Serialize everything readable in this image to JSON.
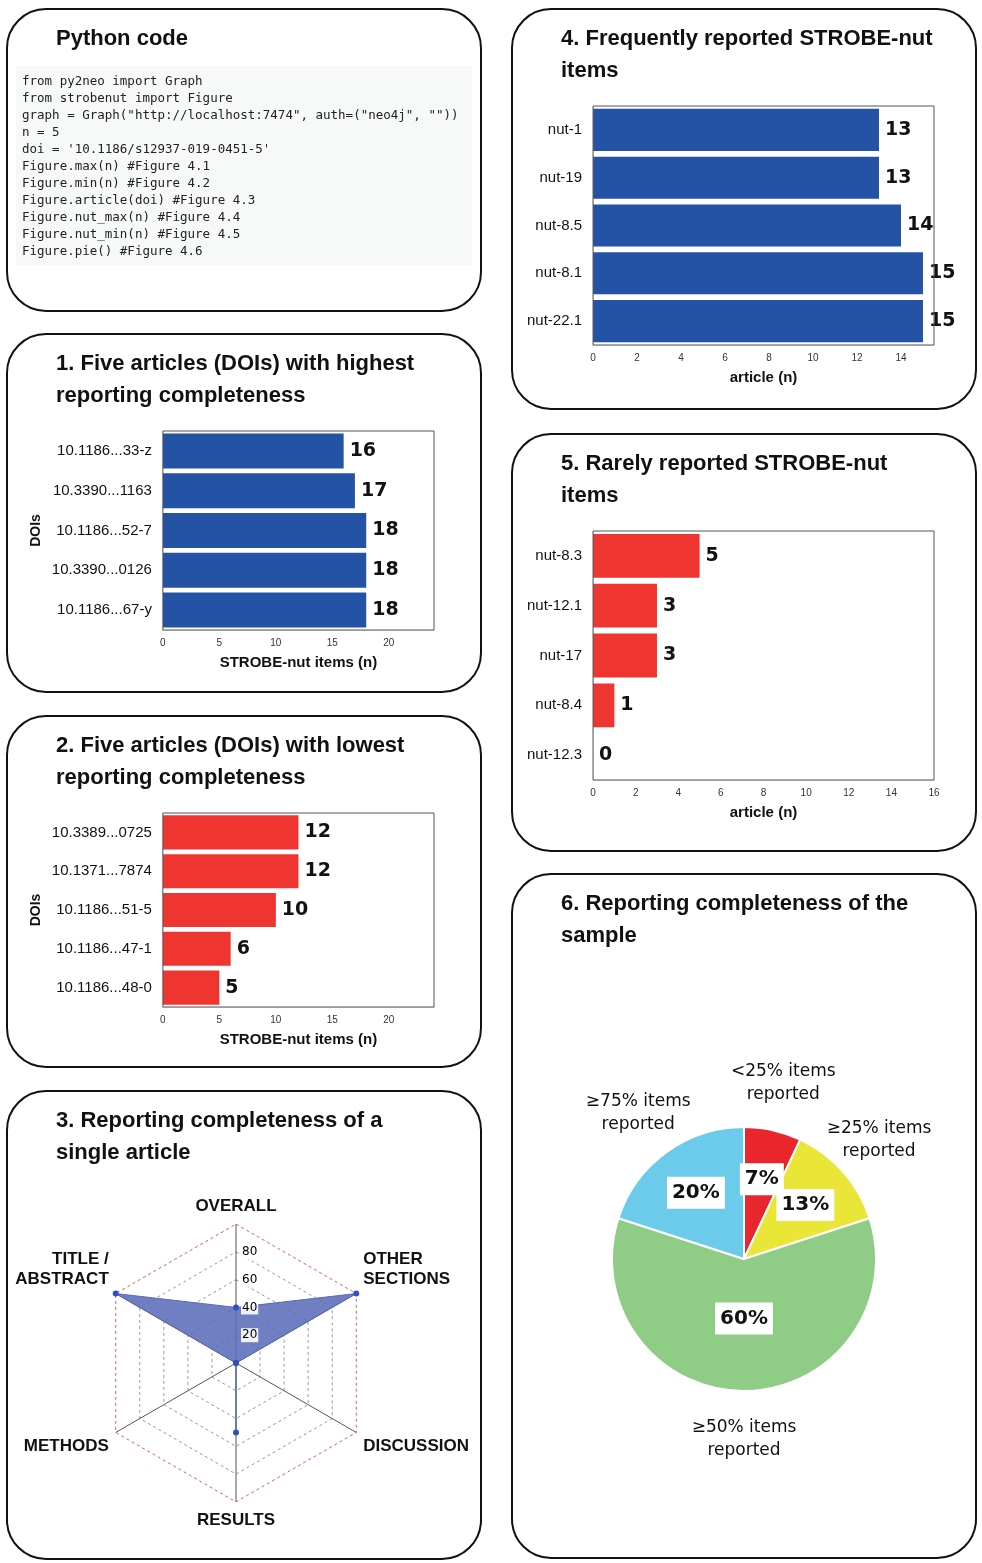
{
  "chart_data": [
    {
      "type": "other",
      "title": "Python code",
      "annotations": [
        "from py2neo import Graph",
        "from strobenut import Figure",
        "graph = Graph(\"http://localhost:7474\", auth=(\"neo4j\", \"\"))",
        "n = 5",
        "doi = '10.1186/s12937-019-0451-5'",
        "Figure.max(n) #Figure 4.1",
        "Figure.min(n) #Figure 4.2",
        "Figure.article(doi) #Figure 4.3",
        "Figure.nut_max(n) #Figure 4.4",
        "Figure.nut_min(n) #Figure 4.5",
        "Figure.pie() #Figure 4.6"
      ]
    },
    {
      "type": "bar",
      "orientation": "horizontal",
      "title": "1. Five articles (DOIs) with highest reporting completeness",
      "ylabel": "DOIs",
      "xlabel": "STROBE-nut items (n)",
      "categories": [
        "10.1186...33-z",
        "10.3390...1163",
        "10.1186...52-7",
        "10.3390...0126",
        "10.1186...67-y"
      ],
      "values": [
        16,
        17,
        18,
        18,
        18
      ],
      "color": "#2452a4",
      "xlim": [
        0,
        24
      ],
      "xticks": [
        0,
        5,
        10,
        15,
        20
      ],
      "data_labels": true
    },
    {
      "type": "bar",
      "orientation": "horizontal",
      "title": "2. Five articles (DOIs) with lowest reporting completeness",
      "ylabel": "DOIs",
      "xlabel": "STROBE-nut items (n)",
      "categories": [
        "10.3389...0725",
        "10.1371...7874",
        "10.1186...51-5",
        "10.1186...47-1",
        "10.1186...48-0"
      ],
      "values": [
        12,
        12,
        10,
        6,
        5
      ],
      "color": "#ee3530",
      "xlim": [
        0,
        24
      ],
      "xticks": [
        0,
        5,
        10,
        15,
        20
      ],
      "data_labels": true
    },
    {
      "type": "radar",
      "title": "3. Reporting completeness of a single article",
      "categories": [
        "OVERALL",
        "OTHER SECTIONS",
        "DISCUSSION",
        "RESULTS",
        "METHODS",
        "TITLE / ABSTRACT"
      ],
      "values": [
        40,
        100,
        0,
        50,
        0,
        100
      ],
      "color": "#5a6bb8",
      "ylim": [
        0,
        100
      ],
      "yticks": [
        20,
        40,
        60,
        80
      ],
      "grid": true
    },
    {
      "type": "bar",
      "orientation": "horizontal",
      "title": "4. Frequently reported STROBE-nut items",
      "xlabel": "article (n)",
      "categories": [
        "nut-1",
        "nut-19",
        "nut-8.5",
        "nut-8.1",
        "nut-22.1"
      ],
      "values": [
        13,
        13,
        14,
        15,
        15
      ],
      "color": "#2452a4",
      "xlim": [
        0,
        15.5
      ],
      "xticks": [
        0,
        2,
        4,
        6,
        8,
        10,
        12,
        14
      ],
      "data_labels": true
    },
    {
      "type": "bar",
      "orientation": "horizontal",
      "title": "5. Rarely reported STROBE-nut items",
      "xlabel": "article (n)",
      "categories": [
        "nut-8.3",
        "nut-12.1",
        "nut-17",
        "nut-8.4",
        "nut-12.3"
      ],
      "values": [
        5,
        3,
        3,
        1,
        0
      ],
      "color": "#ee3530",
      "xlim": [
        0,
        16
      ],
      "xticks": [
        0,
        2,
        4,
        6,
        8,
        10,
        12,
        14,
        16
      ],
      "data_labels": true
    },
    {
      "type": "pie",
      "title": "6. Reporting completeness of the sample",
      "categories": [
        "<25% items reported",
        "≥25% items reported",
        "≥50% items reported",
        "≥75% items reported"
      ],
      "values": [
        7,
        13,
        60,
        20
      ],
      "colors": [
        "#e8262c",
        "#e9e637",
        "#8fcd86",
        "#6ccbea"
      ],
      "value_labels": [
        "7%",
        "13%",
        "60%",
        "20%"
      ]
    }
  ]
}
